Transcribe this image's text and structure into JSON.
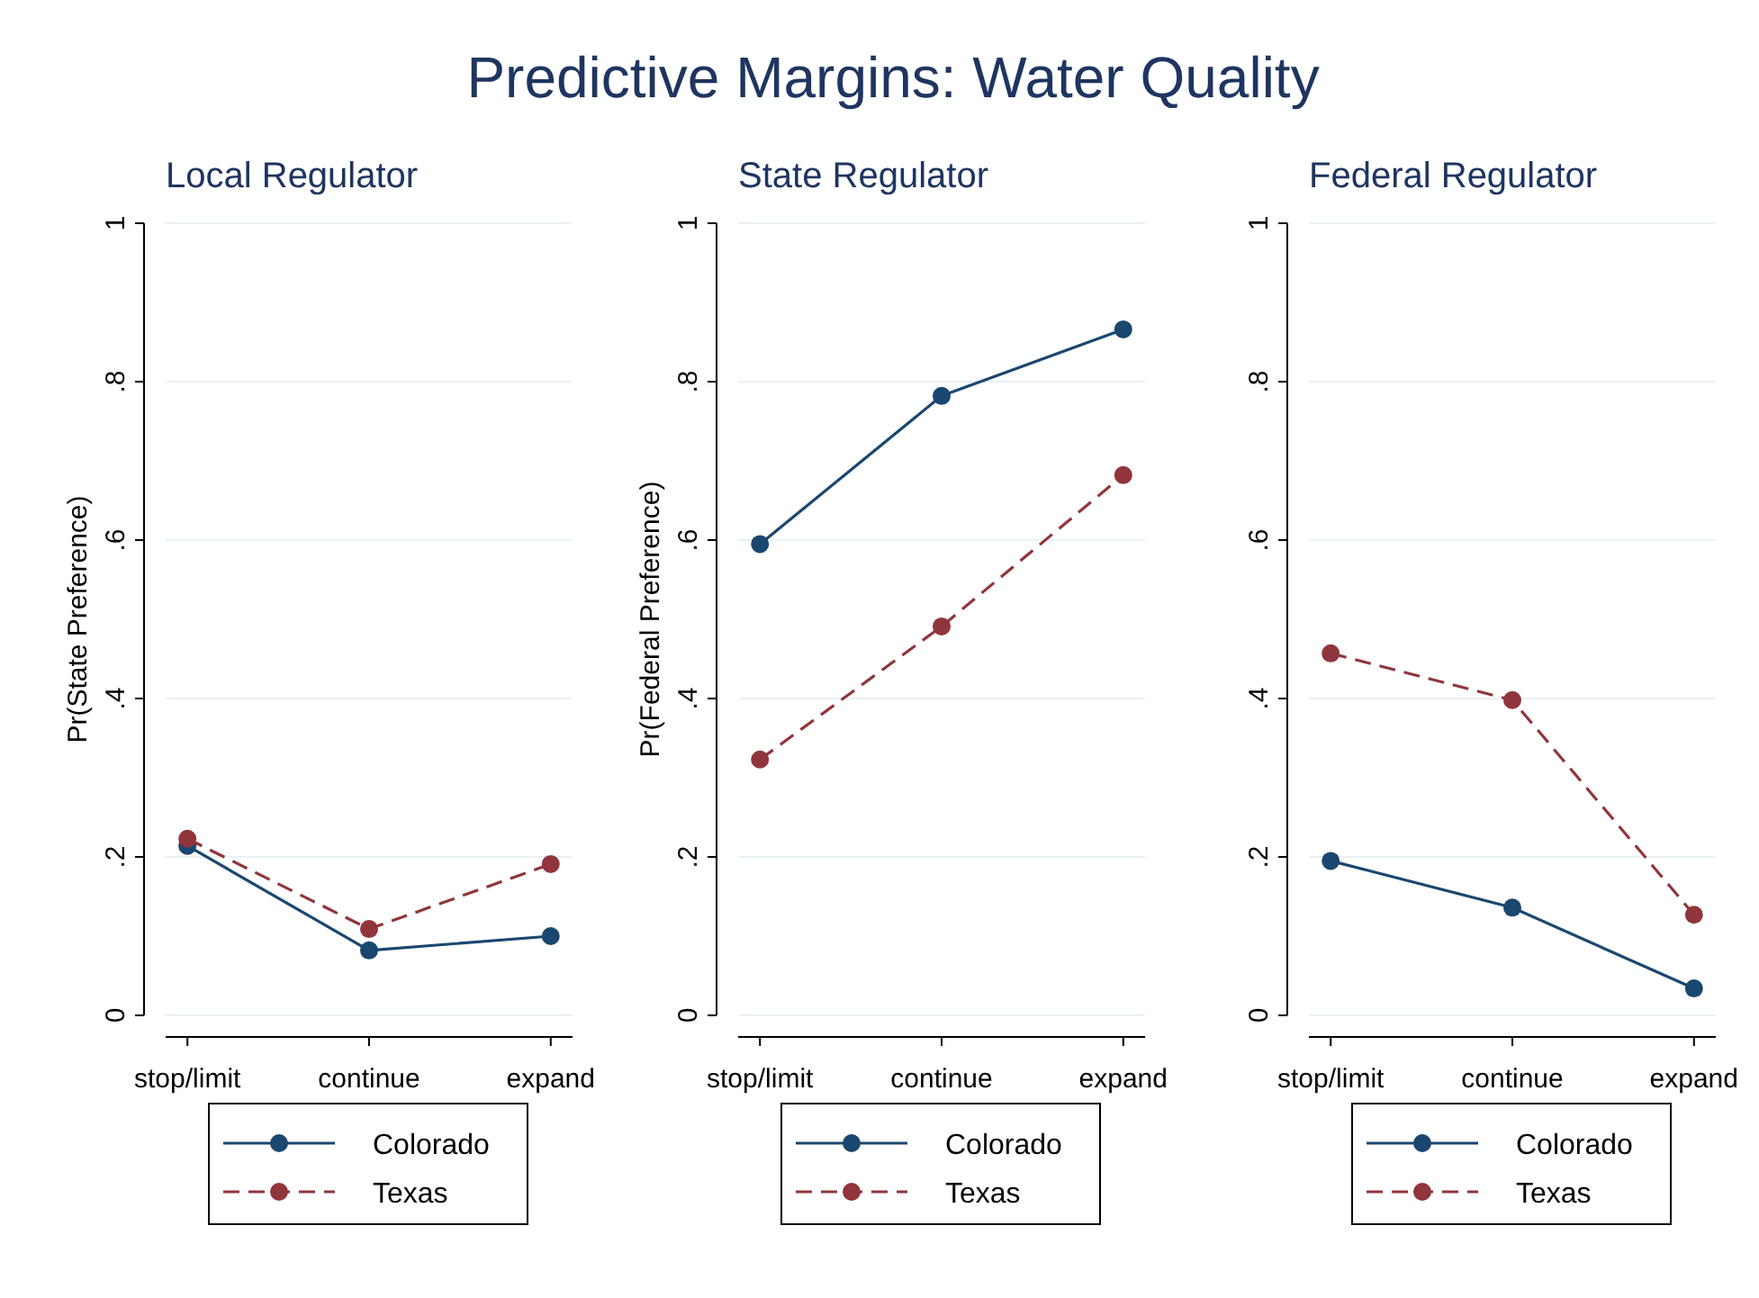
{
  "chart_data": [
    {
      "type": "line",
      "title": "Local Regulator",
      "ylabel": "Pr(State Preference)",
      "annotations": [
        "Predictive Margins: Water Quality"
      ],
      "categories": [
        "stop/limit",
        "continue",
        "expand"
      ],
      "series": [
        {
          "name": "Colorado",
          "color": "#1a476f",
          "values": [
            0.214,
            0.082,
            0.1
          ],
          "line_style": "solid"
        },
        {
          "name": "Texas",
          "color": "#90353b",
          "values": [
            0.223,
            0.109,
            0.191
          ],
          "line_style": "dashed"
        }
      ],
      "ylim": [
        0,
        1
      ],
      "yticks": [
        {
          "value": 0,
          "label": "0"
        },
        {
          "value": 0.2,
          "label": ".2"
        },
        {
          "value": 0.4,
          "label": ".4"
        },
        {
          "value": 0.6,
          "label": ".6"
        },
        {
          "value": 0.8,
          "label": ".8"
        },
        {
          "value": 1,
          "label": "1"
        }
      ],
      "grid": "y",
      "legend": "bottom",
      "marker": "circle"
    },
    {
      "type": "line",
      "title": "State Regulator",
      "ylabel": "Pr(Federal Preference)",
      "categories": [
        "stop/limit",
        "continue",
        "expand"
      ],
      "series": [
        {
          "name": "Colorado",
          "color": "#1a476f",
          "values": [
            0.595,
            0.782,
            0.866
          ],
          "line_style": "solid"
        },
        {
          "name": "Texas",
          "color": "#90353b",
          "values": [
            0.323,
            0.491,
            0.682
          ],
          "line_style": "dashed"
        }
      ],
      "ylim": [
        0,
        1
      ],
      "yticks": [
        {
          "value": 0,
          "label": "0"
        },
        {
          "value": 0.2,
          "label": ".2"
        },
        {
          "value": 0.4,
          "label": ".4"
        },
        {
          "value": 0.6,
          "label": ".6"
        },
        {
          "value": 0.8,
          "label": ".8"
        },
        {
          "value": 1,
          "label": "1"
        }
      ],
      "grid": "y",
      "legend": "bottom",
      "marker": "circle"
    },
    {
      "type": "line",
      "title": "Federal Regulator",
      "categories": [
        "stop/limit",
        "continue",
        "expand"
      ],
      "series": [
        {
          "name": "Colorado",
          "color": "#1a476f",
          "values": [
            0.195,
            0.136,
            0.034
          ],
          "line_style": "solid"
        },
        {
          "name": "Texas",
          "color": "#90353b",
          "values": [
            0.457,
            0.398,
            0.127
          ],
          "line_style": "dashed"
        }
      ],
      "ylim": [
        0,
        1
      ],
      "yticks": [
        {
          "value": 0,
          "label": "0"
        },
        {
          "value": 0.2,
          "label": ".2"
        },
        {
          "value": 0.4,
          "label": ".4"
        },
        {
          "value": 0.6,
          "label": ".6"
        },
        {
          "value": 0.8,
          "label": ".8"
        },
        {
          "value": 1,
          "label": "1"
        }
      ],
      "grid": "y",
      "legend": "bottom",
      "marker": "circle"
    }
  ]
}
